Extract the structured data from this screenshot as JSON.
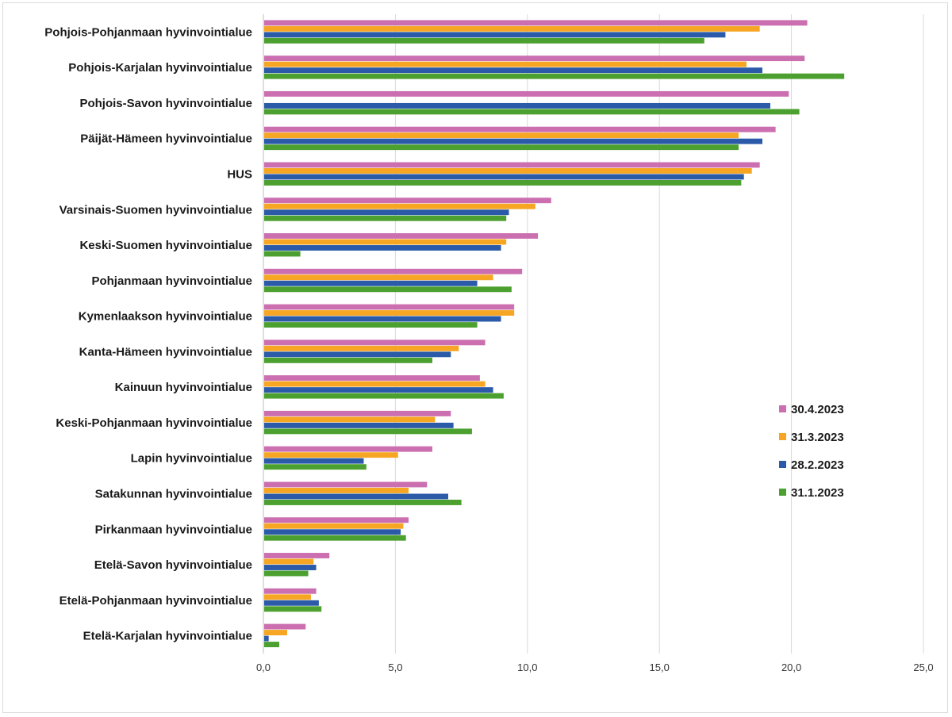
{
  "chart_data": {
    "type": "bar",
    "orientation": "horizontal",
    "categories": [
      "Pohjois-Pohjanmaan hyvinvointialue",
      "Pohjois-Karjalan hyvinvointialue",
      "Pohjois-Savon hyvinvointialue",
      "Päijät-Hämeen hyvinvointialue",
      "HUS",
      "Varsinais-Suomen hyvinvointialue",
      "Keski-Suomen hyvinvointialue",
      "Pohjanmaan hyvinvointialue",
      "Kymenlaakson hyvinvointialue",
      "Kanta-Hämeen hyvinvointialue",
      "Kainuun hyvinvointialue",
      "Keski-Pohjanmaan hyvinvointialue",
      "Lapin hyvinvointialue",
      "Satakunnan hyvinvointialue",
      "Pirkanmaan hyvinvointialue",
      "Etelä-Savon hyvinvointialue",
      "Etelä-Pohjanmaan hyvinvointialue",
      "Etelä-Karjalan hyvinvointialue"
    ],
    "series": [
      {
        "name": "30.4.2023",
        "color": "#cc6fb0",
        "values": [
          20.6,
          20.5,
          19.9,
          19.4,
          18.8,
          10.9,
          10.4,
          9.8,
          9.5,
          8.4,
          8.2,
          7.1,
          6.4,
          6.2,
          5.5,
          2.5,
          2.0,
          1.6
        ]
      },
      {
        "name": "31.3.2023",
        "color": "#f6a623",
        "values": [
          18.8,
          18.3,
          0,
          18.0,
          18.5,
          10.3,
          9.2,
          8.7,
          9.5,
          7.4,
          8.4,
          6.5,
          5.1,
          5.5,
          5.3,
          1.9,
          1.8,
          0.9
        ]
      },
      {
        "name": "28.2.2023",
        "color": "#2a5aa8",
        "values": [
          17.5,
          18.9,
          19.2,
          18.9,
          18.2,
          9.3,
          9.0,
          8.1,
          9.0,
          7.1,
          8.7,
          7.2,
          3.8,
          7.0,
          5.2,
          2.0,
          2.1,
          0.2
        ]
      },
      {
        "name": "31.1.2023",
        "color": "#4ca02f",
        "values": [
          16.7,
          22.0,
          20.3,
          18.0,
          18.1,
          9.2,
          1.4,
          9.4,
          8.1,
          6.4,
          9.1,
          7.9,
          3.9,
          7.5,
          5.4,
          1.7,
          2.2,
          0.6
        ]
      }
    ],
    "xlim": [
      0,
      25
    ],
    "x_ticks": [
      "0,0",
      "5,0",
      "10,0",
      "15,0",
      "20,0",
      "25,0"
    ],
    "grid": "vertical",
    "legend_position": "right"
  }
}
